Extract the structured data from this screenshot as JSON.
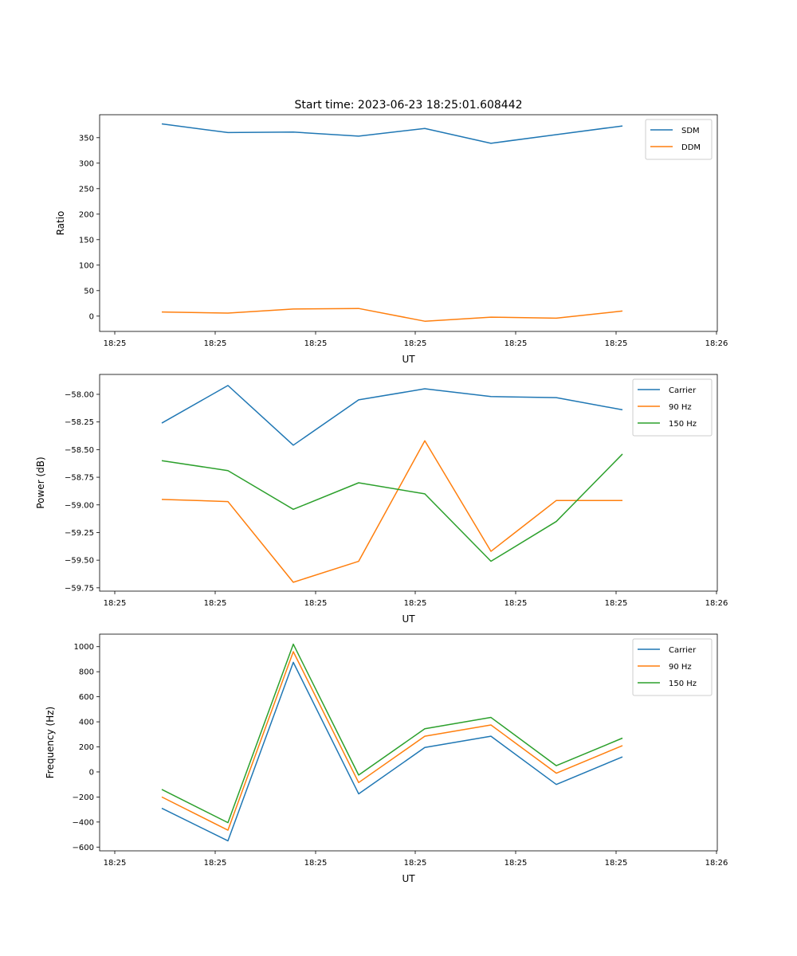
{
  "title": "Start time: 2023-06-23 18:25:01.608442",
  "colors": {
    "blue": "#1f77b4",
    "orange": "#ff7f0e",
    "green": "#2ca02c"
  },
  "chart_data": [
    {
      "type": "line",
      "id": "ratio",
      "xlabel": "UT",
      "ylabel": "Ratio",
      "x_tick_labels": [
        "18:25",
        "18:25",
        "18:25",
        "18:25",
        "18:25",
        "18:25",
        "18:25",
        "18:26"
      ],
      "x_points": 8,
      "ylim": [
        -30,
        395
      ],
      "yticks": [
        0,
        50,
        100,
        150,
        200,
        250,
        300,
        350
      ],
      "ytick_labels": [
        "0",
        "50",
        "100",
        "150",
        "200",
        "250",
        "300",
        "350"
      ],
      "legend": "top-right",
      "series": [
        {
          "name": "SDM",
          "color": "#1f77b4",
          "values": [
            377,
            360,
            361,
            353,
            368,
            339,
            356,
            373
          ]
        },
        {
          "name": "DDM",
          "color": "#ff7f0e",
          "values": [
            8,
            6,
            14,
            15,
            -10,
            -2,
            -4,
            10
          ]
        }
      ]
    },
    {
      "type": "line",
      "id": "power",
      "xlabel": "UT",
      "ylabel": "Power (dB)",
      "x_tick_labels": [
        "18:25",
        "18:25",
        "18:25",
        "18:25",
        "18:25",
        "18:25",
        "18:25",
        "18:26"
      ],
      "x_points": 8,
      "ylim": [
        -59.78,
        -57.82
      ],
      "yticks": [
        -59.75,
        -59.5,
        -59.25,
        -59.0,
        -58.75,
        -58.5,
        -58.25,
        -58.0
      ],
      "ytick_labels": [
        "−59.75",
        "−59.50",
        "−59.25",
        "−59.00",
        "−58.75",
        "−58.50",
        "−58.25",
        "−58.00"
      ],
      "legend": "top-right",
      "series": [
        {
          "name": "Carrier",
          "color": "#1f77b4",
          "values": [
            -58.26,
            -57.92,
            -58.46,
            -58.05,
            -57.95,
            -58.02,
            -58.03,
            -58.14
          ]
        },
        {
          "name": "90 Hz",
          "color": "#ff7f0e",
          "values": [
            -58.95,
            -58.97,
            -59.7,
            -59.51,
            -58.42,
            -59.42,
            -58.96,
            -58.96
          ]
        },
        {
          "name": "150 Hz",
          "color": "#2ca02c",
          "values": [
            -58.6,
            -58.69,
            -59.04,
            -58.8,
            -58.9,
            -59.51,
            -59.15,
            -58.54
          ]
        }
      ]
    },
    {
      "type": "line",
      "id": "frequency",
      "xlabel": "UT",
      "ylabel": "Frequency (Hz)",
      "x_tick_labels": [
        "18:25",
        "18:25",
        "18:25",
        "18:25",
        "18:25",
        "18:25",
        "18:25",
        "18:26"
      ],
      "x_points": 8,
      "ylim": [
        -630,
        1100
      ],
      "yticks": [
        -600,
        -400,
        -200,
        0,
        200,
        400,
        600,
        800,
        1000
      ],
      "ytick_labels": [
        "−600",
        "−400",
        "−200",
        "0",
        "200",
        "400",
        "600",
        "800",
        "1000"
      ],
      "legend": "top-right",
      "series": [
        {
          "name": "Carrier",
          "color": "#1f77b4",
          "values": [
            -290,
            -550,
            875,
            -175,
            195,
            285,
            -100,
            120
          ]
        },
        {
          "name": "90 Hz",
          "color": "#ff7f0e",
          "values": [
            -200,
            -465,
            960,
            -85,
            285,
            375,
            -10,
            210
          ]
        },
        {
          "name": "150 Hz",
          "color": "#2ca02c",
          "values": [
            -140,
            -405,
            1020,
            -25,
            345,
            435,
            50,
            270
          ]
        }
      ]
    }
  ]
}
